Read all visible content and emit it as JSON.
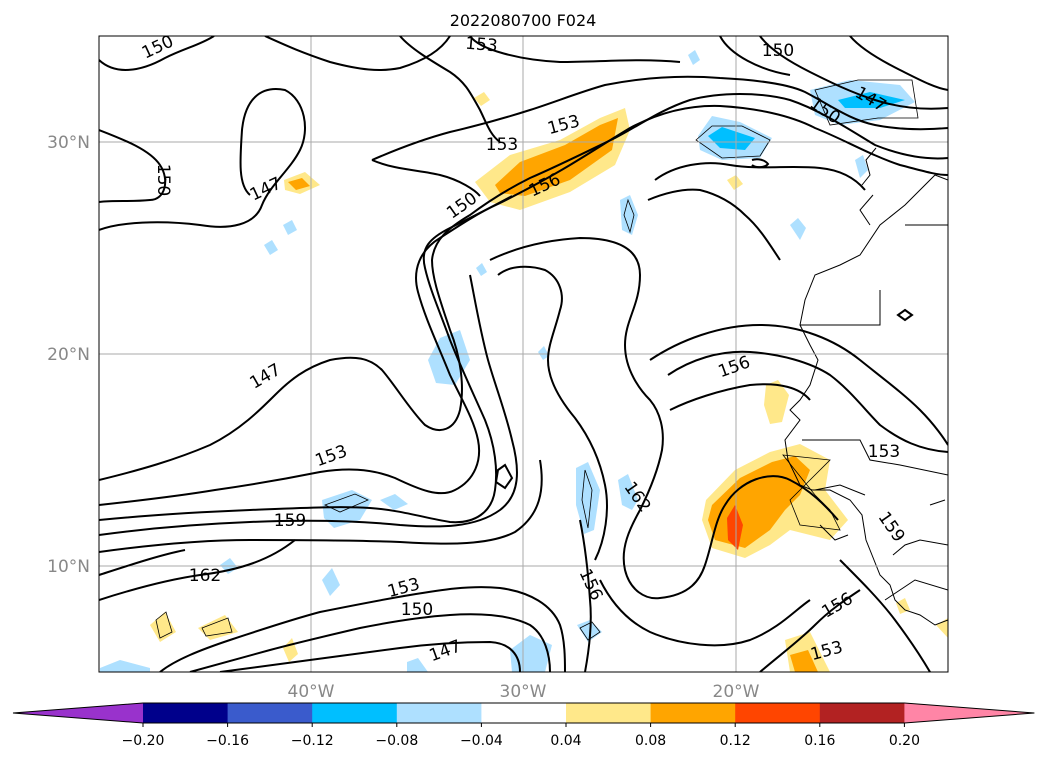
{
  "title": "2022080700 F024",
  "map": {
    "lat_ticks": [
      "30°N",
      "20°N",
      "10°N"
    ],
    "lon_ticks": [
      "40°W",
      "30°W",
      "20°W"
    ],
    "grid": true,
    "contour_labels": [
      "150",
      "153",
      "150",
      "150",
      "147",
      "153",
      "153",
      "156",
      "150",
      "147",
      "156",
      "147",
      "153",
      "159",
      "162",
      "153",
      "150",
      "147",
      "162",
      "156",
      "153",
      "159",
      "156",
      "153"
    ]
  },
  "colorbar": {
    "ticks": [
      "−0.20",
      "−0.16",
      "−0.12",
      "−0.08",
      "−0.04",
      "0.04",
      "0.08",
      "0.12",
      "0.16",
      "0.20"
    ],
    "colors": [
      "#9932cc",
      "#00008b",
      "#3a5bcc",
      "#00bfff",
      "#aee0ff",
      "#ffffff",
      "#ffe88a",
      "#ffa500",
      "#ff4500",
      "#b22222",
      "#ff85a6"
    ],
    "extend": "both"
  }
}
